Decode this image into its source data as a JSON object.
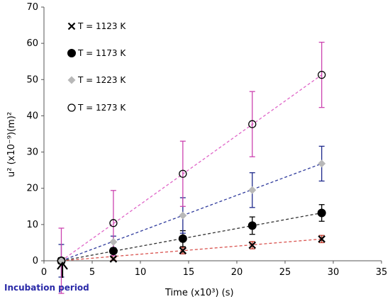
{
  "chart_data": {
    "type": "scatter",
    "xlabel": "Time (x10³)  (s)",
    "ylabel": "u² (x10⁻⁹)(m)²",
    "xlim": [
      0,
      35
    ],
    "ylim": [
      0,
      70
    ],
    "xticks": [
      0,
      5,
      10,
      15,
      20,
      25,
      30,
      35
    ],
    "yticks": [
      0,
      10,
      20,
      30,
      40,
      50,
      60,
      70
    ],
    "grid": false,
    "legend_position": "top-left",
    "annotation": "Incubation period",
    "series": [
      {
        "name": "T = 1123 K",
        "marker": "x",
        "color": "#000000",
        "line_color": "#d9534f",
        "x": [
          1.8,
          7.2,
          14.4,
          21.6,
          28.8
        ],
        "y": [
          0.0,
          0.5,
          2.8,
          4.3,
          6.0
        ],
        "err": [
          0.0,
          0.3,
          0.9,
          1.0,
          1.0
        ],
        "err_color": "#c0392b"
      },
      {
        "name": "T = 1173 K",
        "marker": "circle-filled",
        "color": "#000000",
        "line_color": "#333333",
        "x": [
          1.8,
          7.2,
          14.4,
          21.6,
          28.8
        ],
        "y": [
          0.0,
          2.7,
          6.1,
          9.7,
          13.2
        ],
        "err": [
          0.0,
          0.8,
          2.2,
          2.4,
          2.3
        ],
        "err_color": "#000000"
      },
      {
        "name": "T = 1223 K",
        "marker": "diamond-filled",
        "color": "#b8b8b8",
        "line_color": "#2e3a9c",
        "x": [
          1.8,
          7.2,
          14.4,
          21.6,
          28.8
        ],
        "y": [
          0.0,
          5.2,
          12.5,
          19.5,
          26.8
        ],
        "err": [
          4.5,
          1.6,
          4.9,
          4.8,
          4.8
        ],
        "err_color": "#1f2a8c"
      },
      {
        "name": "T = 1273 K",
        "marker": "circle-open",
        "color": "#000000",
        "line_color": "#e066c8",
        "x": [
          1.8,
          7.2,
          14.4,
          21.6,
          28.8
        ],
        "y": [
          0.0,
          10.4,
          24.0,
          37.7,
          51.3
        ],
        "err": [
          9.0,
          9.0,
          9.0,
          9.0,
          9.0
        ],
        "err_color": "#cc44b0"
      }
    ]
  }
}
